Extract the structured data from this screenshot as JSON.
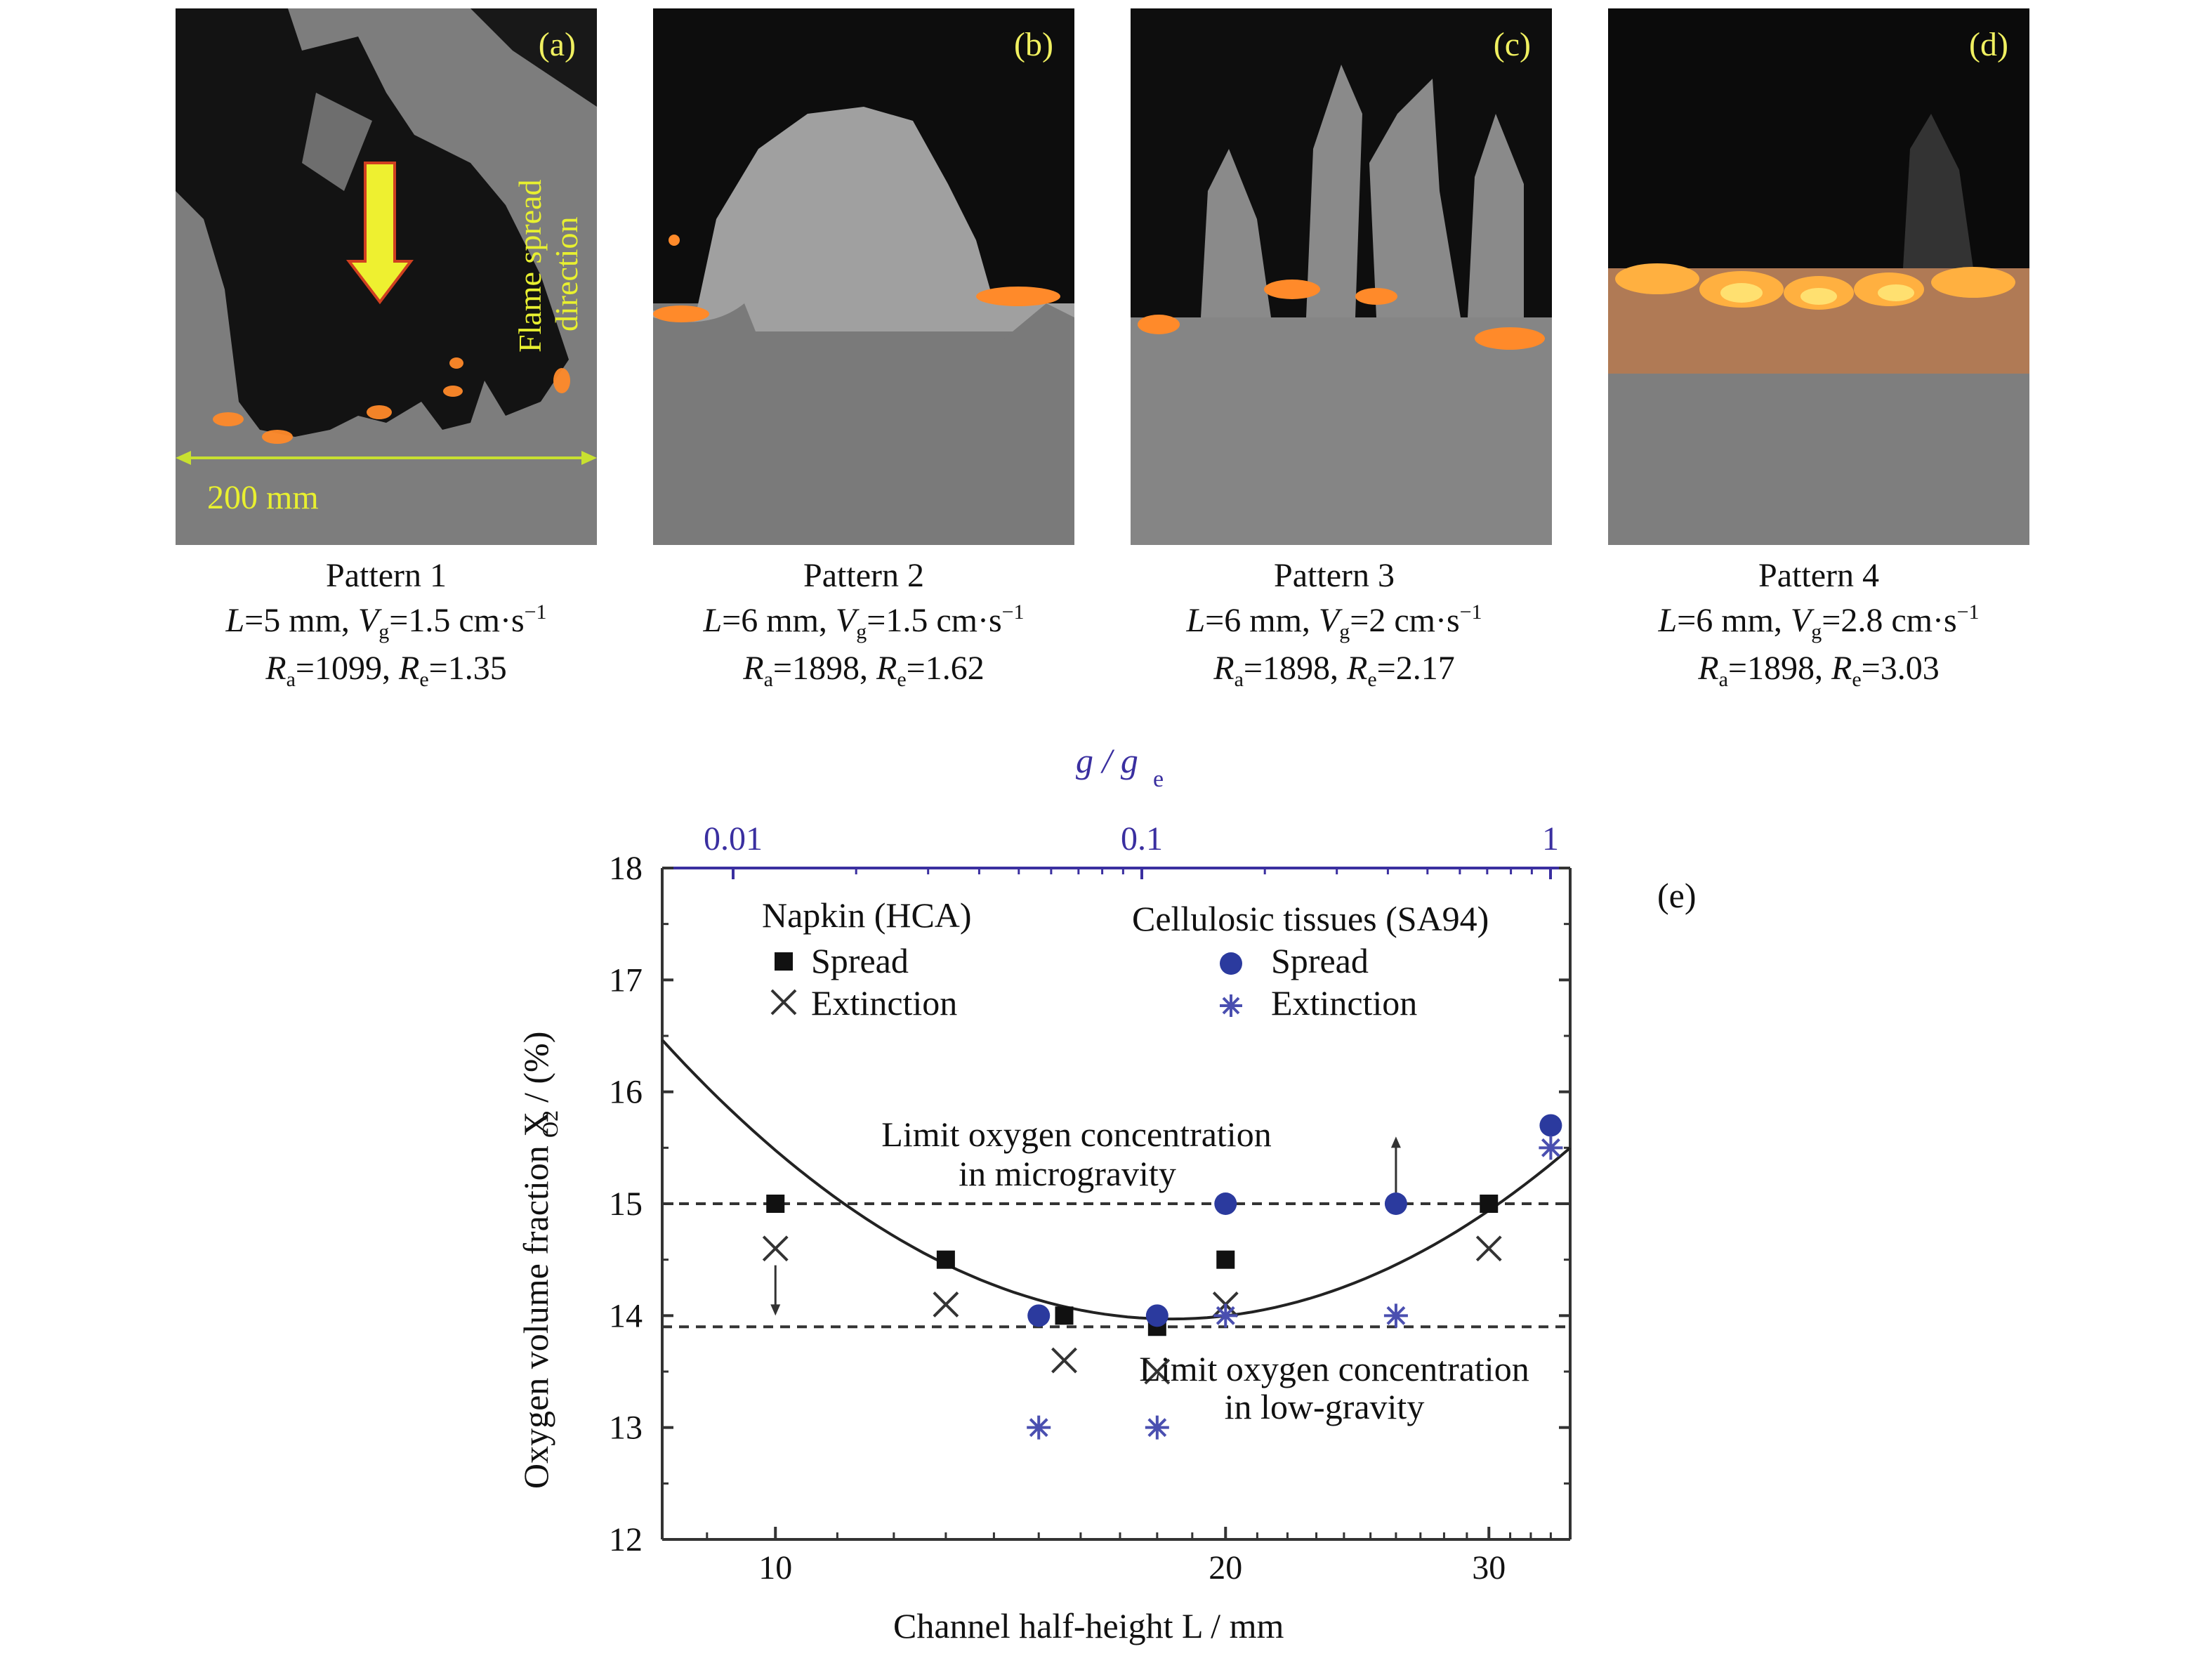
{
  "panels": [
    {
      "label": "(a)",
      "pattern": "Pattern 1",
      "L_text": "5 mm",
      "Vg_text": "1.5 cm·s",
      "Ra_text": "1099",
      "Re_text": "1.35",
      "flame_label_line1": "Flame spread",
      "flame_label_line2": "direction",
      "scale_label": "200 mm"
    },
    {
      "label": "(b)",
      "pattern": "Pattern 2",
      "L_text": "6 mm",
      "Vg_text": "1.5 cm·s",
      "Ra_text": "1898",
      "Re_text": "1.62"
    },
    {
      "label": "(c)",
      "pattern": "Pattern 3",
      "L_text": "6 mm",
      "Vg_text": "2 cm·s",
      "Ra_text": "1898",
      "Re_text": "2.17"
    },
    {
      "label": "(d)",
      "pattern": "Pattern 4",
      "L_text": "6 mm",
      "Vg_text": "2.8 cm·s",
      "Ra_text": "1898",
      "Re_text": "3.03"
    }
  ],
  "chart_data": {
    "type": "scatter",
    "panel_label": "(e)",
    "xlabel": "Channel half-height  L / mm",
    "ylabel": "Oxygen volume fraction  X",
    "ylabel_sub": "O2",
    "ylabel_unit": " / (%)",
    "top_xlabel": "g / g",
    "top_xlabel_sub": "e",
    "xlim": [
      8.4,
      34
    ],
    "ylim": [
      12,
      18
    ],
    "x_scale": "log",
    "x_ticks": [
      10,
      20,
      30
    ],
    "y_ticks": [
      12,
      13,
      14,
      15,
      16,
      17,
      18
    ],
    "top_ticks": [
      "0.01",
      "0.1",
      "1"
    ],
    "legend": {
      "group1_title": "Napkin (HCA)",
      "group2_title": "Cellulosic tissues (SA94)",
      "spread": "Spread",
      "extinction": "Extinction"
    },
    "series": [
      {
        "name": "Spread",
        "group": "Napkin (HCA)",
        "marker": "square",
        "color": "#111111",
        "points": [
          [
            10,
            15
          ],
          [
            13,
            14.5
          ],
          [
            15.6,
            14
          ],
          [
            18,
            13.9
          ],
          [
            20,
            14.5
          ],
          [
            30,
            15
          ]
        ]
      },
      {
        "name": "Extinction",
        "group": "Napkin (HCA)",
        "marker": "x",
        "color": "#333333",
        "points": [
          [
            10,
            14.6
          ],
          [
            13,
            14.1
          ],
          [
            15.6,
            13.6
          ],
          [
            18,
            13.5
          ],
          [
            20,
            14.1
          ],
          [
            30,
            14.6
          ]
        ]
      },
      {
        "name": "Spread",
        "group": "Cellulosic tissues (SA94)",
        "marker": "circle",
        "color": "#2b3a9e",
        "points": [
          [
            15,
            14
          ],
          [
            18,
            14
          ],
          [
            20,
            15
          ],
          [
            26,
            15
          ],
          [
            33,
            15.7
          ]
        ]
      },
      {
        "name": "Extinction",
        "group": "Cellulosic tissues (SA94)",
        "marker": "asterisk",
        "color": "#4a4fb0",
        "points": [
          [
            15,
            13
          ],
          [
            18,
            13
          ],
          [
            20,
            14
          ],
          [
            26,
            14
          ],
          [
            33,
            15.5
          ]
        ]
      }
    ],
    "fit_curve": {
      "x_min": 8.4,
      "x_vertex": 18.4,
      "y_vertex": 13.97,
      "curvature": 2.15,
      "x_max": 34
    },
    "dashed_lines": [
      {
        "y": 15,
        "label_line1": "Limit oxygen concentration",
        "label_line2": "in microgravity"
      },
      {
        "y": 13.9,
        "label_line1": "Limit oxygen concentration",
        "label_line2": "in low-gravity"
      }
    ],
    "arrows": [
      {
        "x": 10,
        "y_from": 14.45,
        "y_to": 14.0
      },
      {
        "x": 26,
        "y_from": 15.1,
        "y_to": 15.6
      }
    ],
    "colors": {
      "axis": "#333333",
      "top_axis": "#3a2fa0",
      "curve": "#222222"
    }
  }
}
